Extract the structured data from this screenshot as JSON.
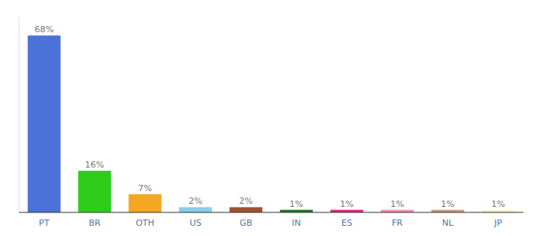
{
  "chart_data": {
    "type": "bar",
    "categories": [
      "PT",
      "BR",
      "OTH",
      "US",
      "GB",
      "IN",
      "ES",
      "FR",
      "NL",
      "JP"
    ],
    "values": [
      68,
      16,
      7,
      2,
      2,
      1,
      1,
      1,
      1,
      1
    ],
    "value_labels": [
      "68%",
      "16%",
      "7%",
      "2%",
      "2%",
      "1%",
      "1%",
      "1%",
      "1%",
      "1%"
    ],
    "colors": [
      "#4a72d9",
      "#2ecc1a",
      "#f5a623",
      "#87ceeb",
      "#a0522d",
      "#1a7a1a",
      "#e91e8c",
      "#f48fb1",
      "#d4967a",
      "#f5f5c0"
    ],
    "ylim": [
      0,
      75
    ],
    "data_labels": true,
    "tick_labels": "x",
    "grid": false
  }
}
